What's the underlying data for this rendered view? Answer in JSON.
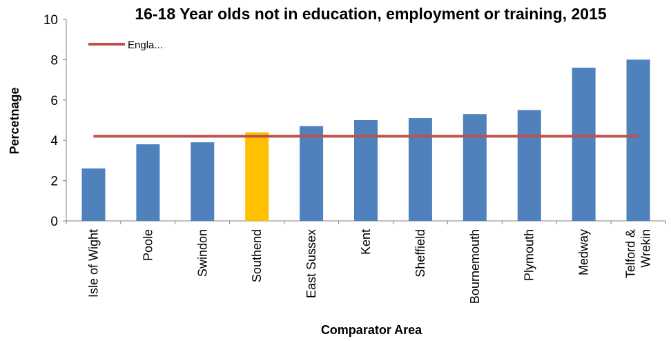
{
  "chart_data": {
    "type": "bar",
    "title": "16-18 Year olds not in education, employment or training, 2015",
    "xlabel": "Comparator Area",
    "ylabel": "Percetnage",
    "ylim": [
      0,
      10
    ],
    "yticks": [
      0,
      2,
      4,
      6,
      8,
      10
    ],
    "grid": false,
    "categories": [
      [
        "Isle of Wight"
      ],
      [
        "Poole"
      ],
      [
        "Swindon"
      ],
      [
        "Southend"
      ],
      [
        "East Sussex"
      ],
      [
        "Kent"
      ],
      [
        "Sheffield"
      ],
      [
        "Bournemouth"
      ],
      [
        "Plymouth"
      ],
      [
        "Medway"
      ],
      [
        "Telford &",
        "Wrekin"
      ]
    ],
    "values": [
      2.6,
      3.8,
      3.9,
      4.4,
      4.7,
      5.0,
      5.1,
      5.3,
      5.5,
      7.6,
      8.0
    ],
    "bar_color": "#4F81BD",
    "highlight_index": 3,
    "highlight_color": "#FFC000",
    "reference_line": {
      "name": "Engla...",
      "value": 4.2,
      "color": "#C0504D"
    },
    "legend_position": "top-left"
  }
}
